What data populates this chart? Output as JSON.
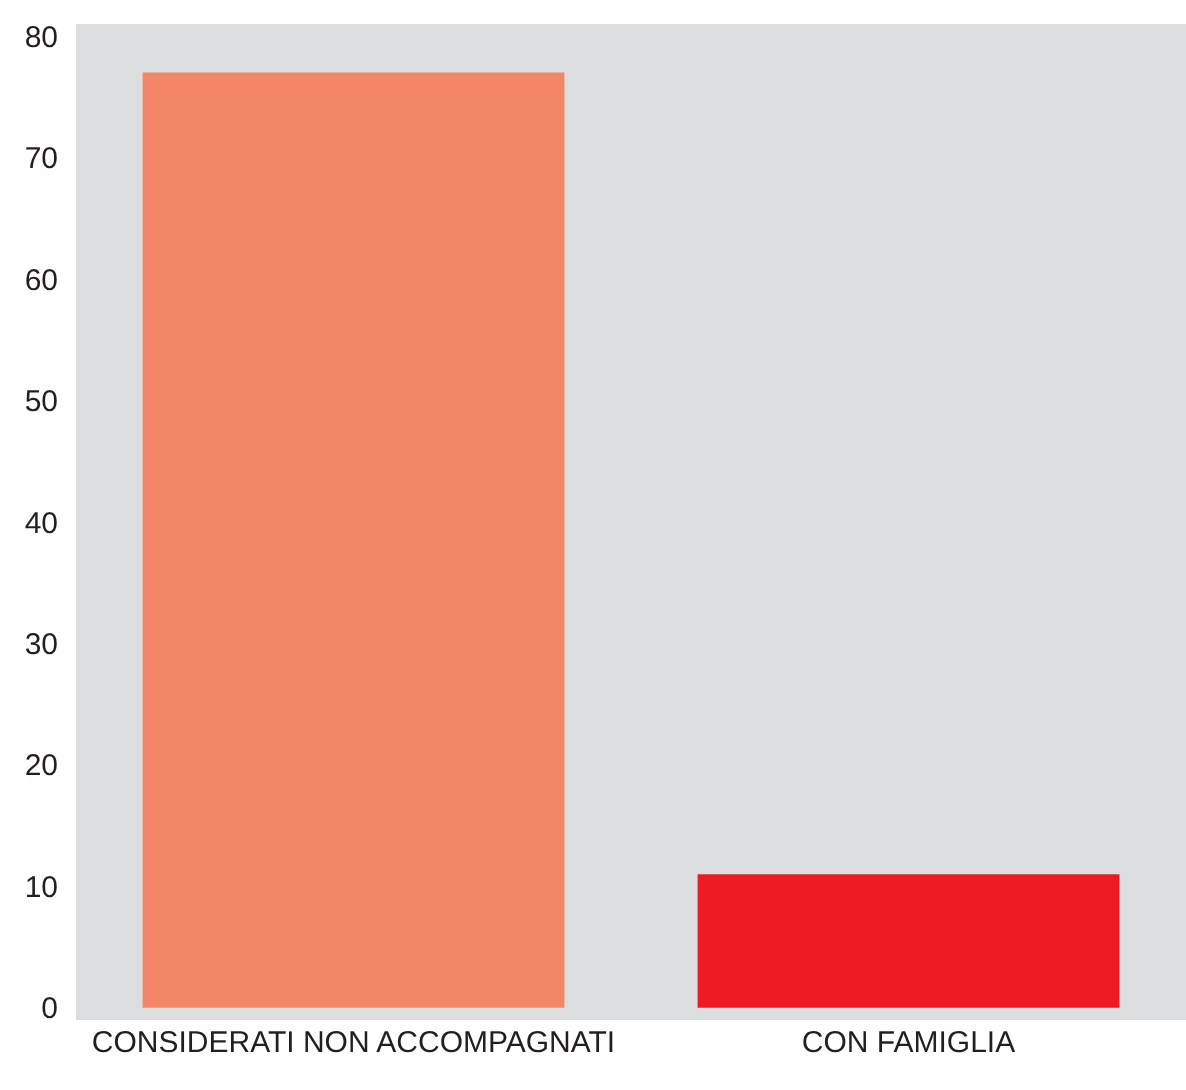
{
  "chart_data": {
    "type": "bar",
    "categories": [
      "CONSIDERATI NON ACCOMPAGNATI",
      "CON FAMIGLIA"
    ],
    "values": [
      77,
      11
    ],
    "colors": [
      "#f48668",
      "#ed1c24"
    ],
    "ylim": [
      -1,
      81
    ],
    "yticks": [
      0,
      10,
      20,
      30,
      40,
      50,
      60,
      70,
      80
    ],
    "grid": false
  }
}
